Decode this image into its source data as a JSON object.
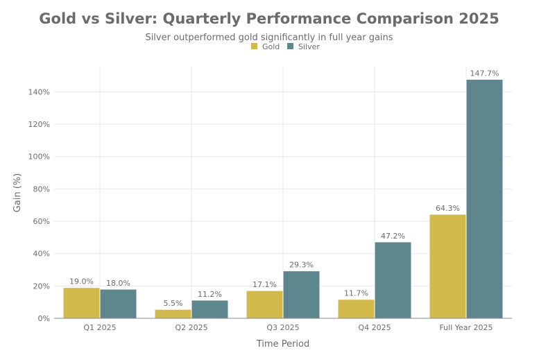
{
  "chart_data": {
    "type": "bar",
    "title": "Gold vs Silver: Quarterly Performance Comparison 2025",
    "subtitle": "Silver outperformed gold significantly in full year gains",
    "xlabel": "Time Period",
    "ylabel": "Gain (%)",
    "categories": [
      "Q1 2025",
      "Q2 2025",
      "Q3 2025",
      "Q4 2025",
      "Full Year 2025"
    ],
    "series": [
      {
        "name": "Gold",
        "color": "#D2B94B",
        "values": [
          19.0,
          5.5,
          17.1,
          11.7,
          64.3
        ],
        "labels": [
          "19.0%",
          "5.5%",
          "17.1%",
          "11.7%",
          "64.3%"
        ]
      },
      {
        "name": "Silver",
        "color": "#5D878C",
        "values": [
          18.0,
          11.2,
          29.3,
          47.2,
          147.7
        ],
        "labels": [
          "18.0%",
          "11.2%",
          "29.3%",
          "47.2%",
          "147.7%"
        ]
      }
    ],
    "ylim": [
      0,
      155.6
    ],
    "yticks": [
      0,
      20,
      40,
      60,
      80,
      100,
      120,
      140
    ],
    "ytick_labels": [
      "0%",
      "20%",
      "40%",
      "60%",
      "80%",
      "100%",
      "120%",
      "140%"
    ],
    "grid": true,
    "legend_position": "top-center"
  }
}
